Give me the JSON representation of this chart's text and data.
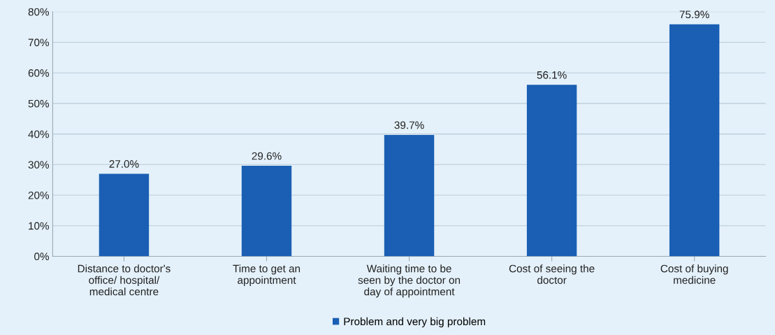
{
  "chart_data": {
    "type": "bar",
    "categories": [
      "Distance to doctor's\noffice/ hospital/\nmedical centre",
      "Time to get an\nappointment",
      "Waiting time to be\nseen by the doctor on\nday of appointment",
      "Cost of seeing the\ndoctor",
      "Cost of buying\nmedicine"
    ],
    "series": [
      {
        "name": "Problem and very big problem",
        "color": "#1a5fb4",
        "values": [
          27.0,
          29.6,
          39.7,
          56.1,
          75.9
        ],
        "value_labels": [
          "27.0%",
          "29.6%",
          "39.7%",
          "56.1%",
          "75.9%"
        ]
      }
    ],
    "ylim": [
      0,
      80
    ],
    "yticks": [
      {
        "value": 0,
        "label": "0%"
      },
      {
        "value": 10,
        "label": "10%"
      },
      {
        "value": 20,
        "label": "20%"
      },
      {
        "value": 30,
        "label": "30%"
      },
      {
        "value": 40,
        "label": "40%"
      },
      {
        "value": 50,
        "label": "50%"
      },
      {
        "value": 60,
        "label": "60%"
      },
      {
        "value": 70,
        "label": "70%"
      },
      {
        "value": 80,
        "label": "80%"
      }
    ],
    "grid": "y",
    "legend": "bottom"
  }
}
